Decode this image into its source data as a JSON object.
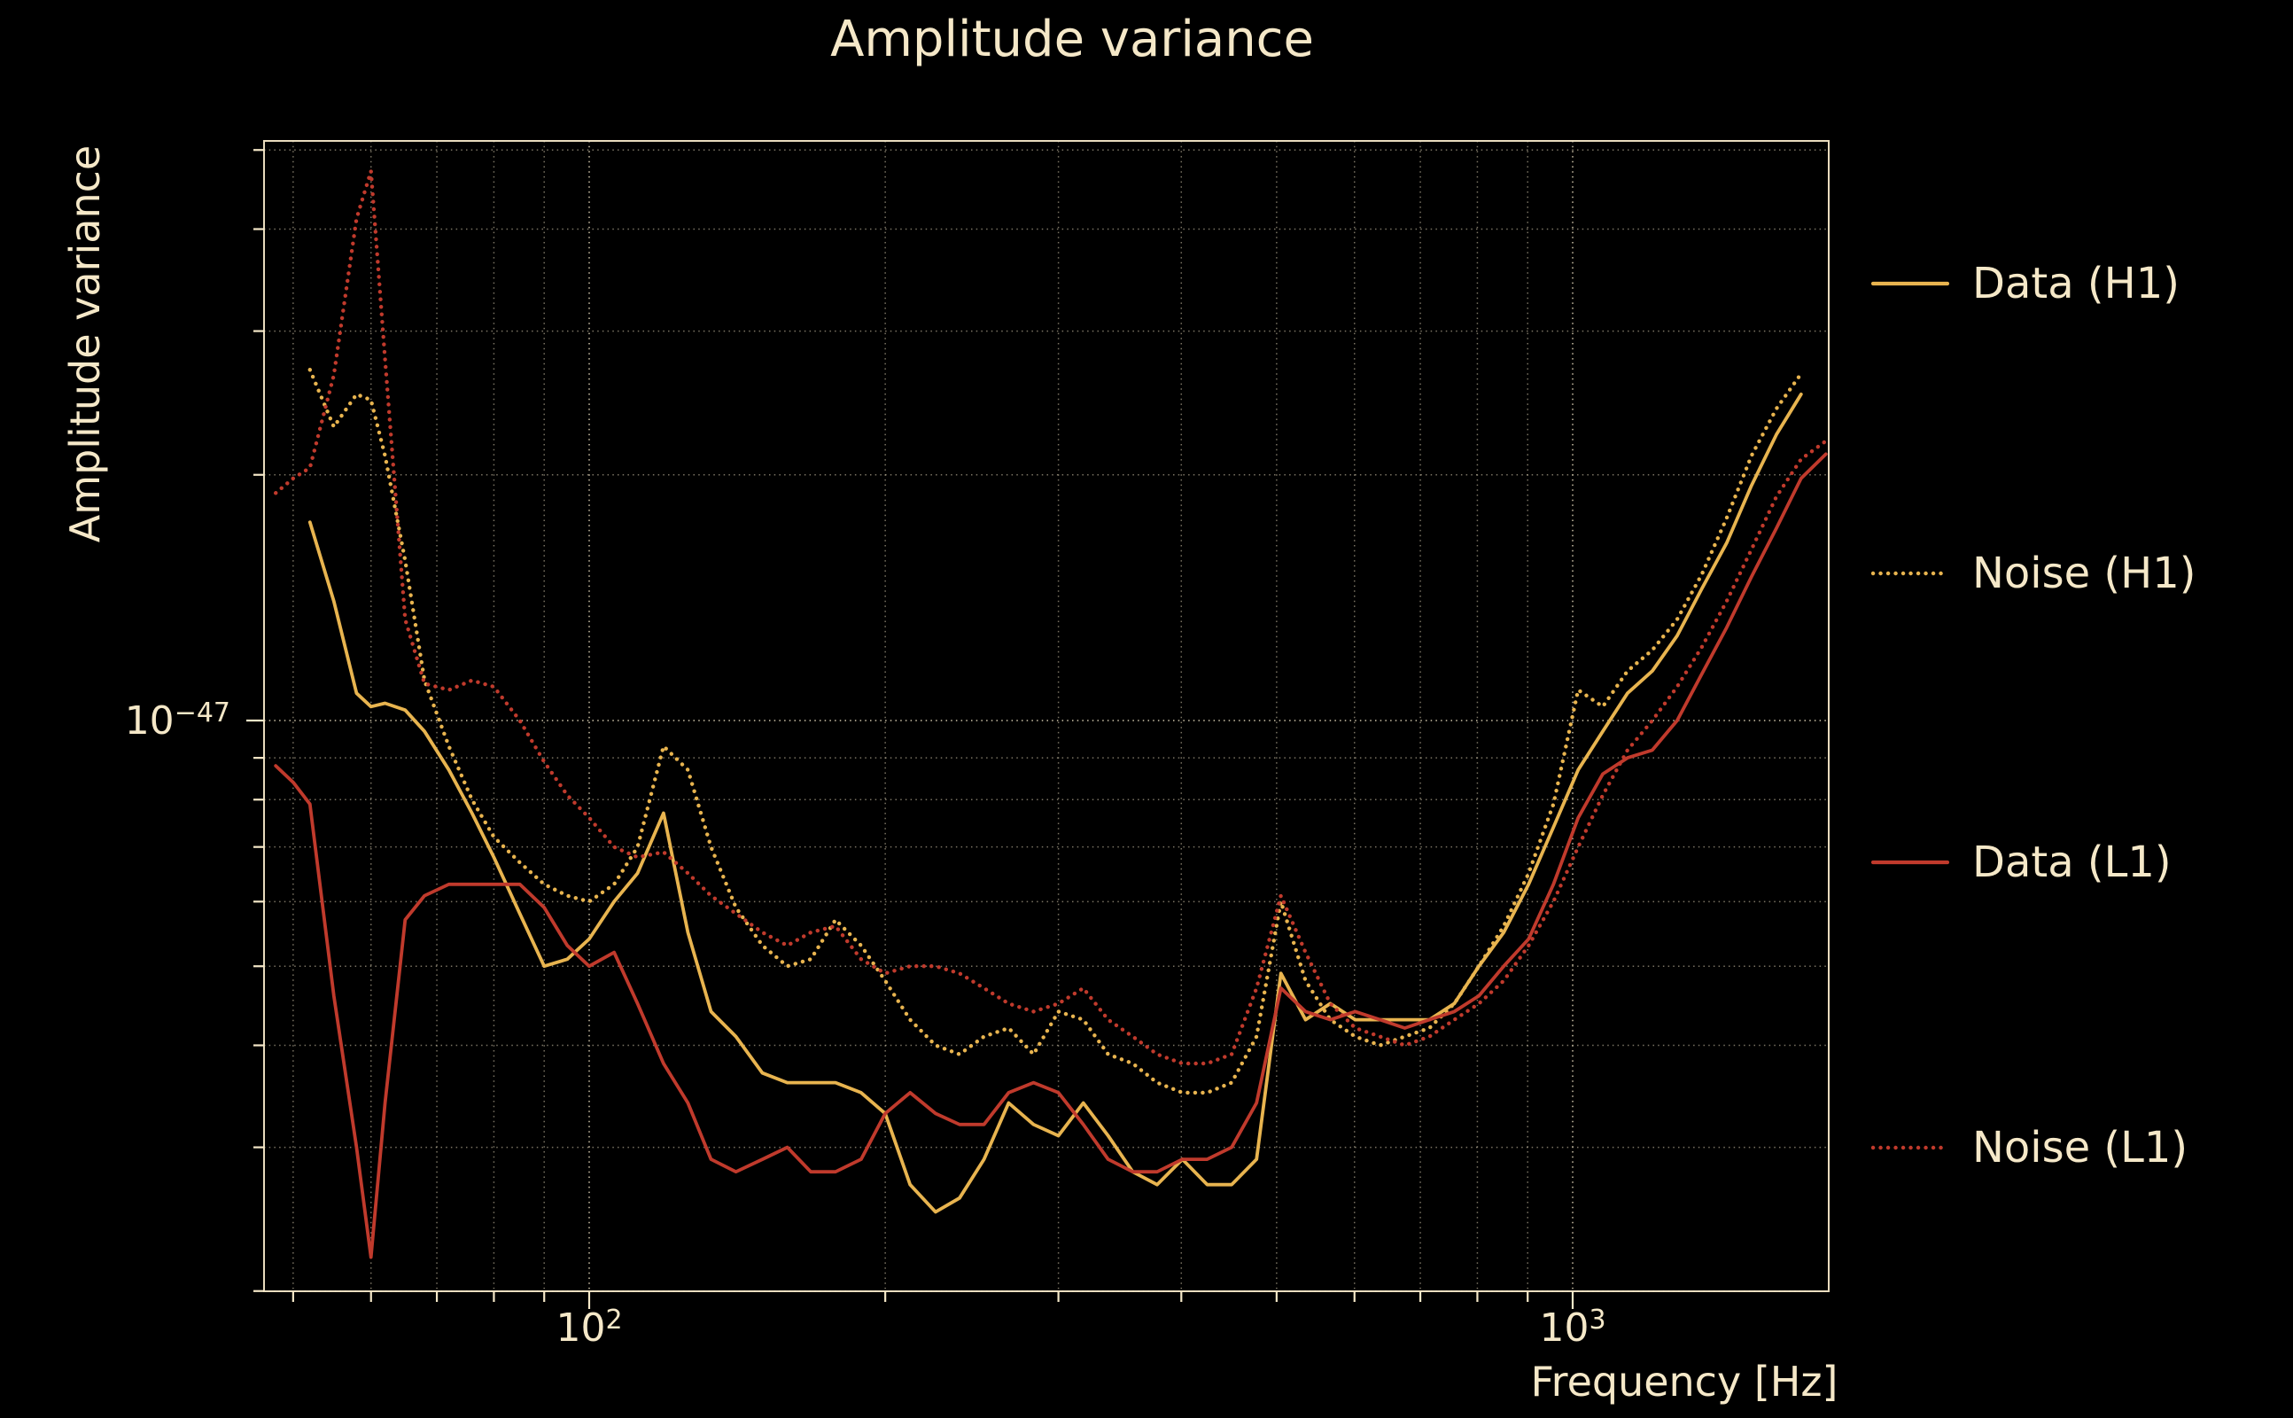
{
  "title": "Amplitude variance",
  "axes": {
    "xlabel": "Frequency [Hz]",
    "ylabel": "Amplitude variance",
    "xticks": [
      {
        "base": "10",
        "exp": "2",
        "value_hz": 100
      },
      {
        "base": "10",
        "exp": "3",
        "value_hz": 1000
      }
    ],
    "ytick": {
      "base": "10",
      "exp": "−47",
      "value": 1e-47
    }
  },
  "colors": {
    "background": "#000000",
    "text": "#f5e8c8",
    "grid": "#f5e8c8",
    "h1": "#e8b44f",
    "l1": "#c03a2c"
  },
  "legend": [
    {
      "label": "Data (H1)",
      "color": "#e8b44f",
      "style": "solid",
      "dash": "none"
    },
    {
      "label": "Noise (H1)",
      "color": "#e8b44f",
      "style": "dotted",
      "dash": "0.1 8.4"
    },
    {
      "label": "Data (L1)",
      "color": "#c03a2c",
      "style": "solid",
      "dash": "none"
    },
    {
      "label": "Noise (L1)",
      "color": "#c03a2c",
      "style": "dotted",
      "dash": "0.1 8.4"
    }
  ],
  "chart_data": {
    "type": "line",
    "title": "Amplitude variance",
    "xlabel": "Frequency [Hz]",
    "ylabel": "Amplitude variance",
    "x_scale": "log",
    "y_scale": "log",
    "xlim_hz": [
      47,
      1820
    ],
    "ylim": [
      2e-48,
      5.2e-47
    ],
    "grid": "both, dotted",
    "legend_position": "right, outside axes",
    "value_unit": "1e-48",
    "x_hz": [
      48,
      50,
      52,
      55,
      58,
      60,
      62,
      65,
      68,
      72,
      76,
      80,
      85,
      90,
      95,
      100,
      106,
      112,
      119,
      126,
      133,
      141,
      150,
      159,
      168,
      178,
      189,
      200,
      212,
      225,
      238,
      252,
      267,
      283,
      300,
      318,
      337,
      357,
      378,
      401,
      425,
      450,
      477,
      505,
      535,
      567,
      601,
      637,
      675,
      715,
      758,
      803,
      851,
      902,
      956,
      1013,
      1073,
      1137,
      1205,
      1277,
      1353,
      1434,
      1520,
      1611,
      1707,
      1809
    ],
    "series": [
      {
        "name": "Data (H1)",
        "color": "#e8b44f",
        "line": "solid",
        "values": [
          null,
          null,
          17.5,
          14.0,
          10.8,
          10.4,
          10.5,
          10.3,
          9.7,
          8.7,
          7.7,
          6.8,
          5.8,
          5.0,
          5.1,
          5.4,
          6.0,
          6.5,
          7.7,
          5.5,
          4.4,
          4.1,
          3.7,
          3.6,
          3.6,
          3.6,
          3.5,
          3.3,
          2.7,
          2.5,
          2.6,
          2.9,
          3.4,
          3.2,
          3.1,
          3.4,
          3.1,
          2.8,
          2.7,
          2.9,
          2.7,
          2.7,
          2.9,
          4.9,
          4.3,
          4.5,
          4.3,
          4.3,
          4.3,
          4.3,
          4.5,
          5.0,
          5.5,
          6.3,
          7.4,
          8.7,
          9.7,
          10.8,
          11.5,
          12.7,
          14.5,
          16.5,
          19.4,
          22.4,
          25.1,
          null
        ]
      },
      {
        "name": "Noise (H1)",
        "color": "#e8b44f",
        "line": "dotted",
        "values": [
          null,
          null,
          26.9,
          22.9,
          25.1,
          24.7,
          21.1,
          15.7,
          11.2,
          9.3,
          8.0,
          7.2,
          6.7,
          6.3,
          6.1,
          6.0,
          6.3,
          7.0,
          9.3,
          8.7,
          7.0,
          5.9,
          5.3,
          5.0,
          5.1,
          5.7,
          5.3,
          4.8,
          4.3,
          4.0,
          3.9,
          4.1,
          4.2,
          3.9,
          4.4,
          4.3,
          3.9,
          3.8,
          3.6,
          3.5,
          3.5,
          3.6,
          4.1,
          6.0,
          4.8,
          4.3,
          4.1,
          4.0,
          4.1,
          4.2,
          4.5,
          5.0,
          5.6,
          6.5,
          7.9,
          10.9,
          10.4,
          11.5,
          12.2,
          13.3,
          15.1,
          17.7,
          21.1,
          24.1,
          26.6,
          null
        ]
      },
      {
        "name": "Data (L1)",
        "color": "#c03a2c",
        "line": "solid",
        "values": [
          8.8,
          8.4,
          7.9,
          4.6,
          3.0,
          2.2,
          3.4,
          5.7,
          6.1,
          6.3,
          6.3,
          6.3,
          6.3,
          5.9,
          5.3,
          5.0,
          5.2,
          4.5,
          3.8,
          3.4,
          2.9,
          2.8,
          2.9,
          3.0,
          2.8,
          2.8,
          2.9,
          3.3,
          3.5,
          3.3,
          3.2,
          3.2,
          3.5,
          3.6,
          3.5,
          3.2,
          2.9,
          2.8,
          2.8,
          2.9,
          2.9,
          3.0,
          3.4,
          4.7,
          4.4,
          4.3,
          4.4,
          4.3,
          4.2,
          4.3,
          4.4,
          4.6,
          5.0,
          5.4,
          6.3,
          7.6,
          8.6,
          9.0,
          9.2,
          10.0,
          11.4,
          13.0,
          15.0,
          17.2,
          19.8,
          21.2
        ]
      },
      {
        "name": "Noise (L1)",
        "color": "#c03a2c",
        "line": "dotted",
        "values": [
          19.0,
          19.8,
          20.4,
          26.5,
          41.2,
          47.1,
          27.7,
          13.3,
          11.1,
          10.9,
          11.2,
          11.0,
          10.0,
          8.9,
          8.1,
          7.6,
          7.0,
          6.8,
          6.9,
          6.5,
          6.1,
          5.8,
          5.5,
          5.3,
          5.5,
          5.6,
          5.1,
          4.9,
          5.0,
          5.0,
          4.9,
          4.7,
          4.5,
          4.4,
          4.5,
          4.7,
          4.3,
          4.1,
          3.9,
          3.8,
          3.8,
          3.9,
          4.7,
          6.1,
          5.2,
          4.5,
          4.2,
          4.1,
          4.0,
          4.1,
          4.3,
          4.5,
          4.8,
          5.3,
          6.0,
          7.0,
          8.1,
          9.2,
          10.0,
          11.0,
          12.3,
          14.0,
          16.2,
          18.8,
          20.9,
          22.0
        ]
      }
    ]
  }
}
